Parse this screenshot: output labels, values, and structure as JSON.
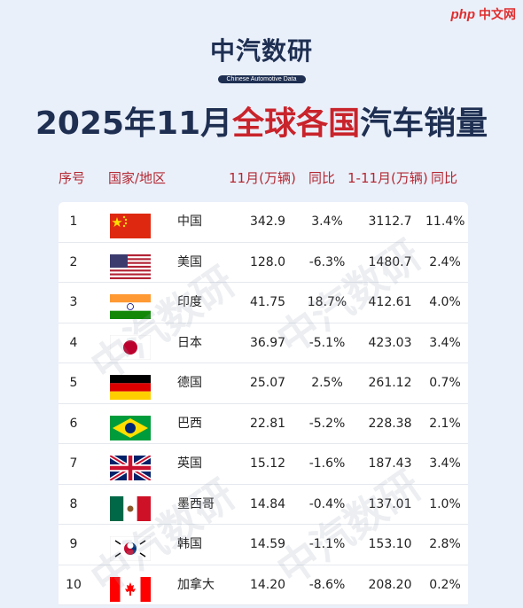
{
  "site_logo": {
    "php": "php",
    "cn": "中文网"
  },
  "brand": {
    "name": "中汽数研",
    "subtitle": "Chinese Automotive Data"
  },
  "title": {
    "part1": "2025年11月",
    "highlight": "全球各国",
    "part2": "汽车销量"
  },
  "columns": {
    "idx": "序号",
    "country": "国家/地区",
    "nov": "11月(万辆)",
    "yoy1": "同比",
    "ytd": "1-11月(万辆)",
    "yoy2": "同比"
  },
  "rows": [
    {
      "idx": "1",
      "flag": "china-flag",
      "country": "中国",
      "nov": "342.9",
      "yoy1": "3.4%",
      "ytd": "3112.7",
      "yoy2": "11.4%"
    },
    {
      "idx": "2",
      "flag": "usa-flag",
      "country": "美国",
      "nov": "128.0",
      "yoy1": "-6.3%",
      "ytd": "1480.7",
      "yoy2": "2.4%"
    },
    {
      "idx": "3",
      "flag": "india-flag",
      "country": "印度",
      "nov": "41.75",
      "yoy1": "18.7%",
      "ytd": "412.61",
      "yoy2": "4.0%"
    },
    {
      "idx": "4",
      "flag": "japan-flag",
      "country": "日本",
      "nov": "36.97",
      "yoy1": "-5.1%",
      "ytd": "423.03",
      "yoy2": "3.4%"
    },
    {
      "idx": "5",
      "flag": "germany-flag",
      "country": "德国",
      "nov": "25.07",
      "yoy1": "2.5%",
      "ytd": "261.12",
      "yoy2": "0.7%"
    },
    {
      "idx": "6",
      "flag": "brazil-flag",
      "country": "巴西",
      "nov": "22.81",
      "yoy1": "-5.2%",
      "ytd": "228.38",
      "yoy2": "2.1%"
    },
    {
      "idx": "7",
      "flag": "uk-flag",
      "country": "英国",
      "nov": "15.12",
      "yoy1": "-1.6%",
      "ytd": "187.43",
      "yoy2": "3.4%"
    },
    {
      "idx": "8",
      "flag": "mexico-flag",
      "country": "墨西哥",
      "nov": "14.84",
      "yoy1": "-0.4%",
      "ytd": "137.01",
      "yoy2": "1.0%"
    },
    {
      "idx": "9",
      "flag": "korea-flag",
      "country": "韩国",
      "nov": "14.59",
      "yoy1": "-1.1%",
      "ytd": "153.10",
      "yoy2": "2.8%"
    },
    {
      "idx": "10",
      "flag": "canada-flag",
      "country": "加拿大",
      "nov": "14.20",
      "yoy1": "-8.6%",
      "ytd": "208.20",
      "yoy2": "0.2%"
    }
  ],
  "watermark": "中汽数研",
  "colors": {
    "navy": "#1e2f52",
    "accent_red": "#c9232b",
    "header_red": "#b32832",
    "background": "#eaf0fa"
  }
}
